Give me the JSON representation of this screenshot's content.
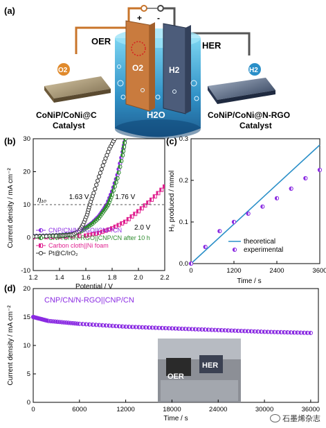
{
  "panel_a": {
    "label": "(a)",
    "plus": "+",
    "minus": "-",
    "oer": "OER",
    "her": "HER",
    "o2_electrode": "O2",
    "h2_electrode": "H2",
    "h2o": "H2O",
    "left_bubble": "O2",
    "right_bubble": "H2",
    "left_catalyst_l1": "CoNiP/CoNi@C",
    "left_catalyst_l2": "Catalyst",
    "right_catalyst_l1": "CoNiP/CoNi@N-RGO",
    "right_catalyst_l2": "Catalyst",
    "colors": {
      "oer_wire": "#c8742a",
      "her_wire": "#444444",
      "water": "#1f8fc4"
    }
  },
  "chart_data": [
    {
      "panel": "(b)",
      "type": "line",
      "xlabel": "Potential / V",
      "ylabel": "Current density / mA cm⁻²",
      "xlim": [
        1.2,
        2.2
      ],
      "ylim": [
        -10,
        30
      ],
      "xticks": [
        "1.2",
        "1.4",
        "1.6",
        "1.8",
        "2.0",
        "2.2"
      ],
      "yticks": [
        "-10",
        "0",
        "10",
        "20",
        "30"
      ],
      "reference_line": {
        "y": 10,
        "label": "η₁₀"
      },
      "annotations": [
        {
          "text": "1.63 V",
          "x": 1.63,
          "y": 10
        },
        {
          "text": "1.76 V",
          "x": 1.76,
          "y": 10
        },
        {
          "text": "2.0 V",
          "x": 2.0,
          "y": 10
        }
      ],
      "legend_position": "bottom-left",
      "series": [
        {
          "name": "CNP/CN/N-RGO||CNP/CN",
          "color": "#8a2be2",
          "marker": "half-circle",
          "x": [
            1.2,
            1.3,
            1.4,
            1.5,
            1.55,
            1.6,
            1.65,
            1.7,
            1.74,
            1.76,
            1.8,
            1.84,
            1.88,
            1.9
          ],
          "y": [
            0.5,
            0.6,
            0.8,
            1.2,
            1.8,
            3,
            4.5,
            6.5,
            8.8,
            10,
            14,
            19,
            26,
            30
          ]
        },
        {
          "name": "CNP/CN/N-RGO||CNP/CN after 10 h",
          "color": "#2e8b2e",
          "marker": "half-circle",
          "x": [
            1.2,
            1.3,
            1.4,
            1.5,
            1.55,
            1.6,
            1.65,
            1.7,
            1.74,
            1.77,
            1.8,
            1.84,
            1.88,
            1.9
          ],
          "y": [
            0.4,
            0.5,
            0.7,
            1.0,
            1.6,
            2.8,
            4.2,
            6.0,
            8.2,
            10,
            13,
            18,
            25,
            30
          ]
        },
        {
          "name": "Carbon cloth||Ni foam",
          "color": "#e0208f",
          "marker": "half-square",
          "x": [
            1.2,
            1.4,
            1.6,
            1.7,
            1.8,
            1.9,
            2.0,
            2.1,
            2.2
          ],
          "y": [
            0.1,
            0.2,
            0.6,
            1.4,
            2.8,
            4.8,
            8.0,
            11.5,
            15.5
          ]
        },
        {
          "name": "Pt@C/IrO₂",
          "color": "#333333",
          "marker": "open-circle",
          "x": [
            1.2,
            1.3,
            1.4,
            1.45,
            1.5,
            1.55,
            1.58,
            1.61,
            1.63,
            1.66,
            1.7,
            1.74,
            1.78,
            1.82
          ],
          "y": [
            0.3,
            0.4,
            0.5,
            0.6,
            0.9,
            2.0,
            4.0,
            7.0,
            10,
            13.5,
            18.5,
            23,
            27,
            30
          ]
        }
      ]
    },
    {
      "panel": "(c)",
      "type": "scatter",
      "xlabel": "Time / s",
      "ylabel": "H₂ produced / mmol",
      "xlim": [
        0,
        3600
      ],
      "ylim": [
        0,
        0.3
      ],
      "xticks": [
        "0",
        "1200",
        "2400",
        "3600"
      ],
      "yticks": [
        "0.0",
        "0.1",
        "0.2",
        "0.3"
      ],
      "legend_position": "bottom-right",
      "series": [
        {
          "name": "theoretical",
          "color": "#2a8fc8",
          "style": "line",
          "x": [
            0,
            3600
          ],
          "y": [
            0,
            0.285
          ]
        },
        {
          "name": "experimental",
          "color": "#8a2be2",
          "style": "marker",
          "x": [
            0,
            400,
            800,
            1200,
            1600,
            2000,
            2400,
            2800,
            3200,
            3600
          ],
          "y": [
            0,
            0.04,
            0.078,
            0.1,
            0.12,
            0.137,
            0.157,
            0.18,
            0.205,
            0.225
          ]
        }
      ]
    },
    {
      "panel": "(d)",
      "type": "line",
      "xlabel": "Time / s",
      "ylabel": "Current density / mA cm⁻²",
      "xlim": [
        0,
        37000
      ],
      "ylim": [
        0,
        20
      ],
      "xticks": [
        "0",
        "6000",
        "12000",
        "18000",
        "24000",
        "30000",
        "36000"
      ],
      "yticks": [
        "0",
        "5",
        "10",
        "15",
        "20"
      ],
      "title_in_plot": "CNP/CN/N-RGO||CNP/CN",
      "inset_labels": [
        "OER",
        "HER"
      ],
      "series": [
        {
          "name": "CNP/CN/N-RGO||CNP/CN",
          "color": "#8a2be2",
          "marker": "half-circle",
          "x": [
            0,
            2000,
            6000,
            12000,
            18000,
            24000,
            30000,
            36000
          ],
          "y": [
            15,
            14.3,
            13.8,
            13.3,
            13.0,
            12.7,
            12.4,
            12.2
          ]
        }
      ]
    }
  ],
  "watermark": "石墨烯杂志"
}
